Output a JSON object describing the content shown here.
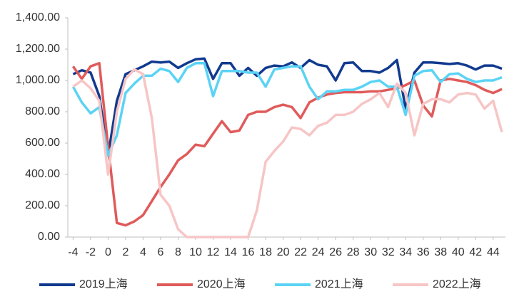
{
  "chart_data": {
    "type": "line",
    "x": [
      -4,
      -3,
      -2,
      -1,
      0,
      1,
      2,
      3,
      4,
      5,
      6,
      7,
      8,
      9,
      10,
      11,
      12,
      13,
      14,
      15,
      16,
      17,
      18,
      19,
      20,
      21,
      22,
      23,
      24,
      25,
      26,
      27,
      28,
      29,
      30,
      31,
      32,
      33,
      34,
      35,
      36,
      37,
      38,
      39,
      40,
      41,
      42,
      43,
      44,
      45
    ],
    "xlim": [
      -4.6,
      45.4
    ],
    "xticks": [
      -4,
      -2,
      0,
      2,
      4,
      6,
      8,
      10,
      12,
      14,
      16,
      18,
      20,
      22,
      24,
      26,
      28,
      30,
      32,
      34,
      36,
      38,
      40,
      42,
      44
    ],
    "ylim": [
      0,
      1400
    ],
    "yticks": [
      {
        "value": 0,
        "label": "0.00"
      },
      {
        "value": 200,
        "label": "200.00"
      },
      {
        "value": 400,
        "label": "400.00"
      },
      {
        "value": 600,
        "label": "600.00"
      },
      {
        "value": 800,
        "label": "800.00"
      },
      {
        "value": 1000,
        "label": "1,000.00"
      },
      {
        "value": 1200,
        "label": "1,200.00"
      },
      {
        "value": 1400,
        "label": "1,400.00"
      }
    ],
    "legend": "bottom",
    "series": [
      {
        "name": "2019上海",
        "color": "#113a8f",
        "values": [
          1040,
          1065,
          1050,
          900,
          520,
          870,
          1040,
          1065,
          1090,
          1120,
          1115,
          1120,
          1080,
          1110,
          1135,
          1140,
          1010,
          1110,
          1110,
          1030,
          1080,
          1030,
          1080,
          1095,
          1090,
          1115,
          1080,
          1130,
          1100,
          1090,
          1000,
          1110,
          1115,
          1060,
          1060,
          1050,
          1080,
          1130,
          820,
          1050,
          1115,
          1115,
          1110,
          1105,
          1110,
          1095,
          1070,
          1095,
          1095,
          1075
        ]
      },
      {
        "name": "2020上海",
        "color": "#e05a5a",
        "values": [
          1090,
          1010,
          1090,
          1110,
          580,
          90,
          75,
          100,
          140,
          230,
          320,
          400,
          490,
          530,
          590,
          580,
          660,
          740,
          670,
          680,
          780,
          800,
          800,
          830,
          845,
          830,
          760,
          860,
          890,
          910,
          920,
          925,
          925,
          925,
          930,
          930,
          940,
          950,
          970,
          1000,
          840,
          770,
          1000,
          1010,
          1000,
          990,
          970,
          940,
          920,
          945
        ]
      },
      {
        "name": "2021上海",
        "color": "#5bd3f5",
        "values": [
          960,
          860,
          790,
          830,
          520,
          650,
          920,
          980,
          1030,
          1030,
          1075,
          1060,
          990,
          1080,
          1110,
          1110,
          900,
          1060,
          1060,
          1060,
          1050,
          1050,
          960,
          1070,
          1080,
          1090,
          1090,
          960,
          880,
          930,
          930,
          940,
          940,
          960,
          990,
          1000,
          960,
          960,
          780,
          1030,
          1060,
          1065,
          990,
          1040,
          1045,
          1010,
          990,
          1000,
          1000,
          1020
        ]
      },
      {
        "name": "2022上海",
        "color": "#f7c5c5",
        "values": [
          960,
          1000,
          950,
          870,
          400,
          800,
          1010,
          1070,
          1040,
          760,
          270,
          200,
          50,
          0,
          0,
          0,
          0,
          0,
          0,
          0,
          0,
          170,
          480,
          550,
          610,
          700,
          690,
          650,
          710,
          730,
          780,
          780,
          800,
          850,
          880,
          920,
          830,
          980,
          920,
          650,
          850,
          880,
          880,
          860,
          910,
          920,
          910,
          820,
          870,
          670
        ]
      }
    ]
  }
}
